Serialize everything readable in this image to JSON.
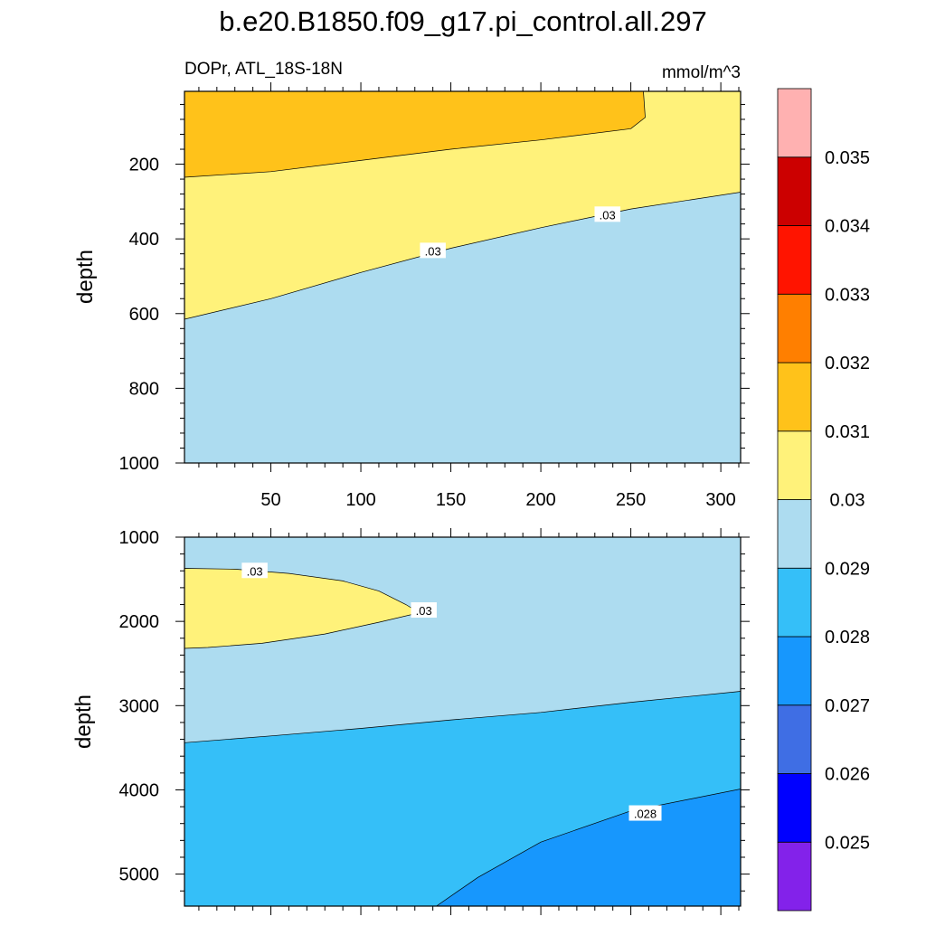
{
  "chart_data": [
    {
      "type": "contour",
      "title": "b.e20.B1850.f09_g17.pi_control.all.297",
      "left_label": "DOPr, ATL_18S-18N",
      "right_label": "mmol/m^3",
      "xlabel": "",
      "ylabel": "depth",
      "x_ticks": [
        50,
        100,
        150,
        200,
        250,
        300
      ],
      "xlim": [
        2,
        311
      ],
      "y_ticks": [
        200,
        400,
        600,
        800,
        1000
      ],
      "ylim": [
        1000,
        5
      ],
      "regions": [
        {
          "range": "0.031-0.032",
          "color": "#ffc21a",
          "boundary_x": [
            2,
            50,
            100,
            150,
            200,
            250,
            258,
            257
          ],
          "boundary_y": [
            235,
            220,
            190,
            160,
            135,
            105,
            75,
            5
          ]
        },
        {
          "range": "0.030-0.031",
          "color": "#fff27a"
        },
        {
          "range": "0.029-0.030",
          "color": "#addcf0",
          "boundary_x": [
            2,
            50,
            100,
            150,
            200,
            250,
            311
          ],
          "boundary_y": [
            615,
            560,
            490,
            425,
            370,
            320,
            275
          ]
        }
      ],
      "contour_labels": [
        {
          "text": ".03",
          "x": 140,
          "y": 432
        },
        {
          "text": ".03",
          "x": 237,
          "y": 335
        }
      ]
    },
    {
      "type": "contour",
      "xlabel": "",
      "ylabel": "depth",
      "xlim": [
        2,
        311
      ],
      "y_ticks": [
        1000,
        2000,
        3000,
        4000,
        5000
      ],
      "ylim": [
        5380,
        1000
      ],
      "regions": [
        {
          "range": "0.029-0.030",
          "color": "#addcf0"
        },
        {
          "range": "0.030-0.031",
          "color": "#fff27a",
          "boundary_x": [
            2,
            30,
            60,
            90,
            110,
            125,
            132,
            132,
            110,
            80,
            45,
            15,
            2
          ],
          "boundary_y": [
            1370,
            1380,
            1430,
            1520,
            1640,
            1800,
            1890,
            1900,
            2010,
            2150,
            2260,
            2310,
            2320
          ]
        },
        {
          "range": "0.028-0.029",
          "color": "#35bff8",
          "boundary_x": [
            2,
            50,
            100,
            150,
            200,
            250,
            311
          ],
          "boundary_y": [
            3440,
            3360,
            3270,
            3170,
            3080,
            2960,
            2830
          ]
        },
        {
          "range": "0.027-0.028",
          "color": "#1797fd",
          "boundary_x": [
            142,
            165,
            200,
            250,
            311
          ],
          "boundary_y": [
            5380,
            5040,
            4620,
            4250,
            3990
          ]
        }
      ],
      "contour_labels": [
        {
          "text": ".03",
          "x": 41,
          "y": 1400
        },
        {
          "text": ".03",
          "x": 135,
          "y": 1870
        },
        {
          "text": ".028",
          "x": 258,
          "y": 4280
        }
      ]
    }
  ],
  "colorbar": {
    "colors": [
      "#8322ea",
      "#0000ff",
      "#3f6ee4",
      "#1797fd",
      "#35bff8",
      "#addcf0",
      "#fff27a",
      "#ffc21a",
      "#ff7f00",
      "#ff1400",
      "#cc0000",
      "#ffb1b1"
    ],
    "labels": [
      "0.025",
      "0.026",
      "0.027",
      "0.028",
      "0.029",
      "0.03",
      "0.031",
      "0.032",
      "0.033",
      "0.034",
      "0.035"
    ]
  }
}
